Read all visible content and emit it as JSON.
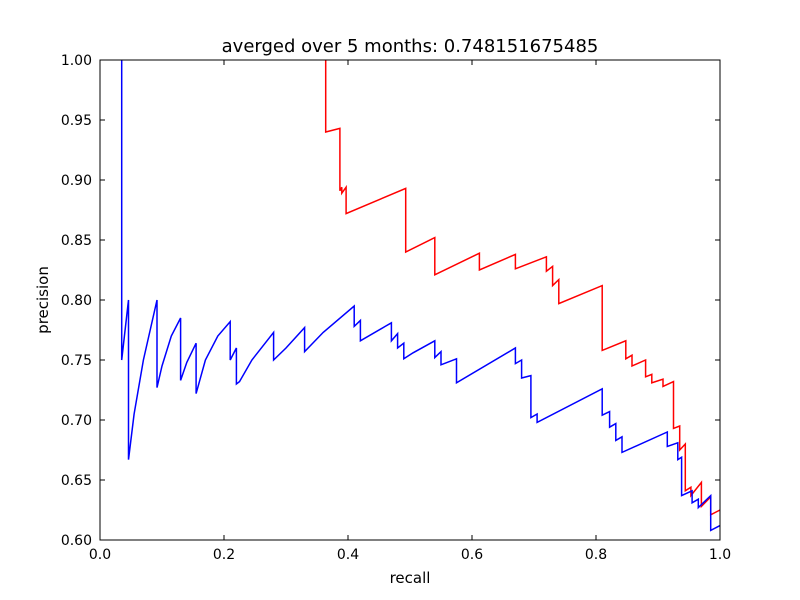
{
  "chart_data": {
    "type": "line",
    "title": "averged over 5 months: 0.748151675485",
    "xlabel": "recall",
    "ylabel": "precision",
    "xlim": [
      0.0,
      1.0
    ],
    "ylim": [
      0.6,
      1.0
    ],
    "xticks": [
      "0.0",
      "0.2",
      "0.4",
      "0.6",
      "0.8",
      "1.0"
    ],
    "yticks": [
      "0.60",
      "0.65",
      "0.70",
      "0.75",
      "0.80",
      "0.85",
      "0.90",
      "0.95",
      "1.00"
    ],
    "grid": false,
    "series": [
      {
        "color": "#ff0000",
        "x": [
          0.364,
          0.364,
          0.364,
          0.387,
          0.387,
          0.39,
          0.39,
          0.397,
          0.397,
          0.493,
          0.493,
          0.54,
          0.54,
          0.612,
          0.612,
          0.67,
          0.67,
          0.72,
          0.72,
          0.73,
          0.73,
          0.74,
          0.74,
          0.81,
          0.81,
          0.848,
          0.848,
          0.858,
          0.858,
          0.88,
          0.88,
          0.89,
          0.89,
          0.908,
          0.908,
          0.925,
          0.925,
          0.935,
          0.935,
          0.944,
          0.944,
          0.953,
          0.953,
          0.97,
          0.97,
          0.985,
          0.985,
          1.0
        ],
        "y": [
          1.0,
          0.98,
          0.94,
          0.943,
          0.891,
          0.894,
          0.889,
          0.894,
          0.872,
          0.893,
          0.84,
          0.852,
          0.821,
          0.839,
          0.825,
          0.838,
          0.826,
          0.836,
          0.824,
          0.828,
          0.812,
          0.817,
          0.797,
          0.812,
          0.758,
          0.766,
          0.751,
          0.754,
          0.745,
          0.75,
          0.736,
          0.738,
          0.731,
          0.734,
          0.728,
          0.732,
          0.693,
          0.695,
          0.675,
          0.68,
          0.641,
          0.644,
          0.637,
          0.648,
          0.628,
          0.636,
          0.621,
          0.625
        ]
      },
      {
        "color": "#0000ff",
        "x": [
          0.035,
          0.035,
          0.035,
          0.046,
          0.046,
          0.055,
          0.07,
          0.092,
          0.092,
          0.1,
          0.115,
          0.13,
          0.13,
          0.14,
          0.155,
          0.155,
          0.17,
          0.19,
          0.21,
          0.21,
          0.22,
          0.22,
          0.225,
          0.245,
          0.28,
          0.28,
          0.3,
          0.33,
          0.33,
          0.36,
          0.41,
          0.41,
          0.42,
          0.42,
          0.46,
          0.47,
          0.47,
          0.48,
          0.48,
          0.49,
          0.49,
          0.505,
          0.54,
          0.54,
          0.55,
          0.55,
          0.575,
          0.575,
          0.67,
          0.67,
          0.68,
          0.68,
          0.695,
          0.695,
          0.705,
          0.705,
          0.81,
          0.81,
          0.822,
          0.822,
          0.832,
          0.832,
          0.842,
          0.842,
          0.915,
          0.915,
          0.932,
          0.932,
          0.938,
          0.938,
          0.955,
          0.955,
          0.965,
          0.965,
          0.985,
          0.985,
          1.0
        ],
        "y": [
          1.0,
          0.85,
          0.75,
          0.8,
          0.667,
          0.705,
          0.75,
          0.8,
          0.727,
          0.745,
          0.77,
          0.785,
          0.733,
          0.748,
          0.764,
          0.722,
          0.75,
          0.77,
          0.782,
          0.75,
          0.76,
          0.73,
          0.732,
          0.75,
          0.773,
          0.75,
          0.76,
          0.777,
          0.757,
          0.773,
          0.795,
          0.778,
          0.783,
          0.766,
          0.778,
          0.781,
          0.766,
          0.772,
          0.76,
          0.764,
          0.751,
          0.756,
          0.766,
          0.752,
          0.757,
          0.746,
          0.751,
          0.731,
          0.76,
          0.747,
          0.75,
          0.735,
          0.737,
          0.702,
          0.705,
          0.698,
          0.726,
          0.704,
          0.707,
          0.694,
          0.697,
          0.683,
          0.686,
          0.673,
          0.69,
          0.678,
          0.681,
          0.667,
          0.669,
          0.637,
          0.641,
          0.631,
          0.634,
          0.627,
          0.637,
          0.608,
          0.612
        ]
      }
    ]
  }
}
